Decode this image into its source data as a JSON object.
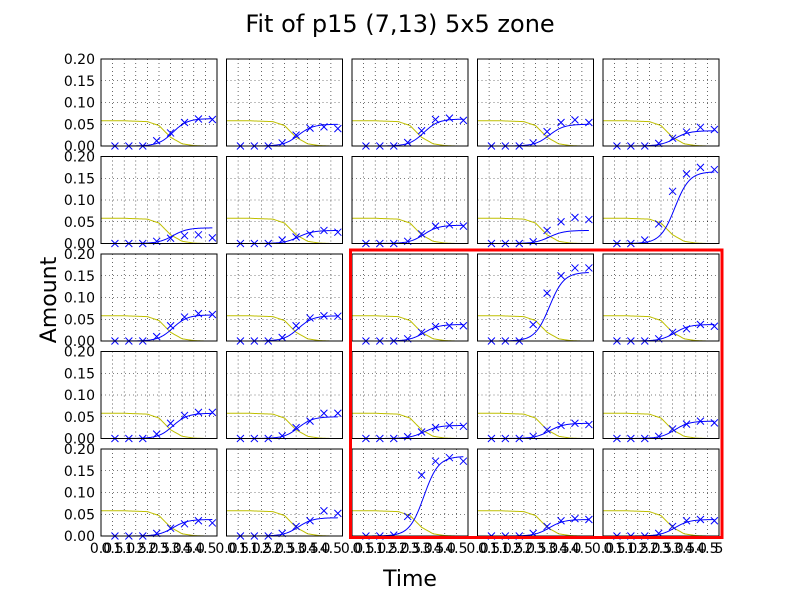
{
  "chart_data": {
    "type": "line",
    "title": "Fit of p15 (7,13) 5x5 zone",
    "xlabel": "Time",
    "ylabel": "Amount",
    "grid": true,
    "xlim": [
      0.0,
      5.0
    ],
    "ylim": [
      0.0,
      0.2
    ],
    "rows": 5,
    "cols": 5,
    "ytick_labels": [
      "0.20",
      "0.15",
      "0.10",
      "0.05",
      "0.00"
    ],
    "xtick_labels": [
      "0.0",
      "0.5",
      "1.0",
      "1.5",
      "2.0",
      "2.5",
      "3.0",
      "3.5",
      "4.0",
      "4.5"
    ],
    "last_xtick_label": "5",
    "highlight": {
      "rows": [
        2,
        4
      ],
      "cols": [
        2,
        4
      ]
    },
    "colors": {
      "fit": "#0000ff",
      "observed": "#0000ff",
      "decay": "#bfbf00",
      "highlight": "#ff0000",
      "grid": "#000000"
    },
    "decay_curve": {
      "x": [
        0,
        1,
        2,
        2.5,
        3,
        3.5,
        4,
        4.5
      ],
      "y": [
        0.058,
        0.058,
        0.056,
        0.047,
        0.02,
        0.005,
        0.001,
        0.0
      ]
    },
    "obs_x": [
      0.6,
      1.2,
      1.8,
      2.4,
      3.0,
      3.6,
      4.2,
      4.8
    ],
    "panels": [
      {
        "fit_plateau": 0.063,
        "obs": [
          0.0,
          0.0,
          0.0,
          0.012,
          0.03,
          0.054,
          0.062,
          0.061
        ]
      },
      {
        "fit_plateau": 0.05,
        "obs": [
          0.0,
          0.0,
          0.0,
          0.007,
          0.025,
          0.041,
          0.044,
          0.04
        ]
      },
      {
        "fit_plateau": 0.062,
        "obs": [
          0.0,
          0.0,
          0.0,
          0.008,
          0.035,
          0.061,
          0.064,
          0.059
        ]
      },
      {
        "fit_plateau": 0.05,
        "obs": [
          0.0,
          0.0,
          0.0,
          0.007,
          0.033,
          0.054,
          0.06,
          0.054
        ]
      },
      {
        "fit_plateau": 0.035,
        "obs": [
          0.0,
          0.0,
          0.0,
          0.006,
          0.018,
          0.032,
          0.043,
          0.038
        ]
      },
      {
        "fit_plateau": 0.036,
        "obs": [
          0.0,
          0.0,
          0.0,
          0.005,
          0.012,
          0.018,
          0.02,
          0.013
        ]
      },
      {
        "fit_plateau": 0.03,
        "obs": [
          0.0,
          0.0,
          0.0,
          0.008,
          0.015,
          0.022,
          0.03,
          0.026
        ]
      },
      {
        "fit_plateau": 0.042,
        "obs": [
          0.0,
          0.0,
          0.0,
          0.005,
          0.022,
          0.04,
          0.043,
          0.04
        ]
      },
      {
        "fit_plateau": 0.03,
        "obs": [
          0.0,
          0.0,
          0.0,
          0.004,
          0.03,
          0.05,
          0.06,
          0.055
        ]
      },
      {
        "fit_plateau": 0.165,
        "obs": [
          0.0,
          0.0,
          0.008,
          0.045,
          0.12,
          0.16,
          0.175,
          0.17
        ]
      },
      {
        "fit_plateau": 0.06,
        "obs": [
          0.0,
          0.0,
          0.0,
          0.01,
          0.035,
          0.055,
          0.063,
          0.061
        ]
      },
      {
        "fit_plateau": 0.058,
        "obs": [
          0.0,
          0.0,
          0.0,
          0.008,
          0.035,
          0.053,
          0.058,
          0.057
        ]
      },
      {
        "fit_plateau": 0.038,
        "obs": [
          0.0,
          0.0,
          0.0,
          0.005,
          0.02,
          0.033,
          0.035,
          0.035
        ]
      },
      {
        "fit_plateau": 0.158,
        "obs": [
          0.0,
          0.0,
          0.0,
          0.038,
          0.11,
          0.15,
          0.168,
          0.168
        ]
      },
      {
        "fit_plateau": 0.038,
        "obs": [
          0.0,
          0.0,
          0.0,
          0.005,
          0.02,
          0.028,
          0.038,
          0.034
        ]
      },
      {
        "fit_plateau": 0.058,
        "obs": [
          0.0,
          0.0,
          0.0,
          0.01,
          0.035,
          0.053,
          0.06,
          0.06
        ]
      },
      {
        "fit_plateau": 0.05,
        "obs": [
          0.0,
          0.0,
          0.0,
          0.006,
          0.025,
          0.04,
          0.058,
          0.058
        ]
      },
      {
        "fit_plateau": 0.03,
        "obs": [
          0.0,
          0.0,
          0.0,
          0.004,
          0.015,
          0.025,
          0.03,
          0.028
        ]
      },
      {
        "fit_plateau": 0.035,
        "obs": [
          0.0,
          0.0,
          0.0,
          0.005,
          0.02,
          0.03,
          0.035,
          0.032
        ]
      },
      {
        "fit_plateau": 0.04,
        "obs": [
          0.0,
          0.0,
          0.0,
          0.005,
          0.022,
          0.033,
          0.04,
          0.036
        ]
      },
      {
        "fit_plateau": 0.038,
        "obs": [
          0.0,
          0.0,
          0.0,
          0.006,
          0.018,
          0.028,
          0.035,
          0.03
        ]
      },
      {
        "fit_plateau": 0.042,
        "obs": [
          0.0,
          0.0,
          0.0,
          0.006,
          0.022,
          0.035,
          0.058,
          0.052
        ]
      },
      {
        "fit_plateau": 0.183,
        "obs": [
          0.0,
          0.0,
          0.002,
          0.045,
          0.14,
          0.172,
          0.18,
          0.172
        ]
      },
      {
        "fit_plateau": 0.038,
        "obs": [
          0.0,
          0.0,
          0.0,
          0.006,
          0.022,
          0.035,
          0.04,
          0.038
        ]
      },
      {
        "fit_plateau": 0.038,
        "obs": [
          0.0,
          0.0,
          0.0,
          0.006,
          0.022,
          0.035,
          0.038,
          0.035
        ]
      }
    ]
  }
}
